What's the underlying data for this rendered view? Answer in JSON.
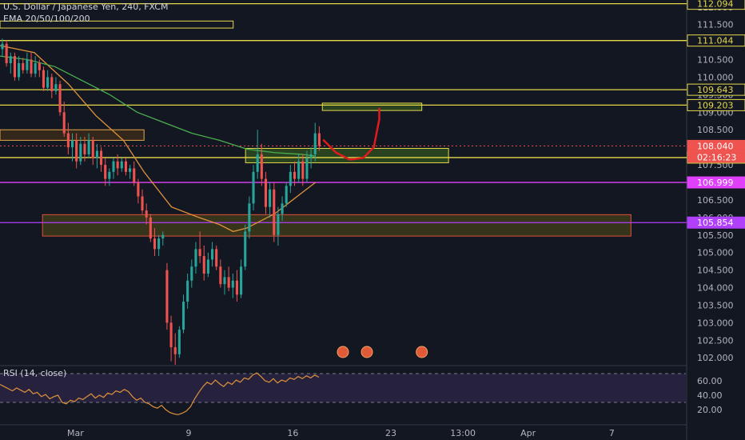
{
  "header": {
    "symbol": "U.S. Dollar / Japanese Yen, 240, FXCM",
    "indicator": "EMA 20/50/100/200"
  },
  "rsi_header": {
    "label": "RSI (14, close)"
  },
  "chart_data": [
    {
      "type": "candlestick",
      "title": "U.S. Dollar / Japanese Yen, 240, FXCM",
      "ylim": [
        101.8,
        112.2
      ],
      "x_ticks": [
        "Mar",
        "9",
        "16",
        "23",
        "13:00",
        "Apr",
        "7"
      ],
      "y_ticks": [
        "102.000",
        "102.500",
        "103.000",
        "103.500",
        "104.000",
        "104.500",
        "105.000",
        "105.500",
        "106.000",
        "106.500",
        "107.000",
        "107.500",
        "108.000",
        "108.500",
        "109.000",
        "109.500",
        "110.000",
        "110.500",
        "111.000",
        "111.500",
        "112.000"
      ],
      "price_levels": [
        {
          "value": 112.094,
          "label": "112.094",
          "color": "#e6d84b",
          "style": "solid"
        },
        {
          "value": 111.044,
          "label": "111.044",
          "color": "#e6d84b",
          "style": "solid"
        },
        {
          "value": 109.643,
          "label": "109.643",
          "color": "#e6d84b",
          "style": "solid"
        },
        {
          "value": 109.203,
          "label": "109.203",
          "color": "#e6d84b",
          "style": "solid"
        },
        {
          "value": 108.04,
          "label": "108.040",
          "color": "#ef5350",
          "style": "dotted"
        },
        {
          "value": 107.708,
          "label": "107.708",
          "color": "#e6d84b",
          "style": "solid"
        },
        {
          "value": 106.999,
          "label": "106.999",
          "color": "#e040fb",
          "style": "solid"
        },
        {
          "value": 105.854,
          "label": "105.854",
          "color": "#b040fb",
          "style": "solid"
        }
      ],
      "countdown": "02:16:23",
      "zones": [
        {
          "x0": 0,
          "x1": 0.34,
          "y0": 111.4,
          "y1": 111.6,
          "fill": "none",
          "stroke": "#e6d84b"
        },
        {
          "x0": 0,
          "x1": 0.21,
          "y0": 108.2,
          "y1": 108.5,
          "fill": "#3a2a1a",
          "stroke": "#e6a84b"
        },
        {
          "x0": 0.062,
          "x1": 0.92,
          "y0": 105.47,
          "y1": 106.08,
          "fill": "#3d3a1a",
          "stroke": "#e0503a"
        },
        {
          "x0": 0.358,
          "x1": 0.654,
          "y0": 107.56,
          "y1": 107.97,
          "fill": "#2e4a1e",
          "stroke": "#e6d84b"
        },
        {
          "x0": 0.47,
          "x1": 0.615,
          "y0": 109.05,
          "y1": 109.26,
          "fill": "#2e4a1e",
          "stroke": "#e6d84b"
        }
      ],
      "candles": [
        [
          0.0,
          110.8,
          111.1,
          110.6,
          110.95
        ],
        [
          0.006,
          110.95,
          111.05,
          110.3,
          110.4
        ],
        [
          0.012,
          110.4,
          110.7,
          110.1,
          110.6
        ],
        [
          0.018,
          110.6,
          110.7,
          109.9,
          110.0
        ],
        [
          0.024,
          110.0,
          110.6,
          109.9,
          110.4
        ],
        [
          0.03,
          110.4,
          110.55,
          110.1,
          110.2
        ],
        [
          0.036,
          110.2,
          110.7,
          110.1,
          110.5
        ],
        [
          0.042,
          110.5,
          110.7,
          110.0,
          110.1
        ],
        [
          0.048,
          110.1,
          110.6,
          110.0,
          110.4
        ],
        [
          0.054,
          110.4,
          110.5,
          110.0,
          110.2
        ],
        [
          0.06,
          110.2,
          110.3,
          109.6,
          109.7
        ],
        [
          0.066,
          109.7,
          110.2,
          109.6,
          110.0
        ],
        [
          0.072,
          110.0,
          110.1,
          109.4,
          109.6
        ],
        [
          0.078,
          109.6,
          110.0,
          109.5,
          109.8
        ],
        [
          0.084,
          109.8,
          109.9,
          108.9,
          109.0
        ],
        [
          0.09,
          109.0,
          109.3,
          108.3,
          108.4
        ],
        [
          0.096,
          108.4,
          108.7,
          107.8,
          108.0
        ],
        [
          0.102,
          108.0,
          108.4,
          107.6,
          108.2
        ],
        [
          0.108,
          108.2,
          108.4,
          107.4,
          107.6
        ],
        [
          0.114,
          107.6,
          108.3,
          107.5,
          108.1
        ],
        [
          0.12,
          108.1,
          108.3,
          107.6,
          107.8
        ],
        [
          0.126,
          107.8,
          108.4,
          107.7,
          108.2
        ],
        [
          0.132,
          108.2,
          108.3,
          107.5,
          107.7
        ],
        [
          0.138,
          107.7,
          108.1,
          107.4,
          107.9
        ],
        [
          0.144,
          107.9,
          108.0,
          107.3,
          107.5
        ],
        [
          0.15,
          107.5,
          107.7,
          106.9,
          107.1
        ],
        [
          0.156,
          107.1,
          107.4,
          106.9,
          107.3
        ],
        [
          0.162,
          107.3,
          107.7,
          107.1,
          107.6
        ],
        [
          0.168,
          107.6,
          107.8,
          107.2,
          107.4
        ],
        [
          0.174,
          107.4,
          107.7,
          107.3,
          107.6
        ],
        [
          0.18,
          107.6,
          107.7,
          107.2,
          107.3
        ],
        [
          0.186,
          107.3,
          107.5,
          107.1,
          107.4
        ],
        [
          0.192,
          107.4,
          107.6,
          106.9,
          107.0
        ],
        [
          0.198,
          107.0,
          107.1,
          106.4,
          106.6
        ],
        [
          0.204,
          106.6,
          106.8,
          106.1,
          106.2
        ],
        [
          0.21,
          106.2,
          106.4,
          105.8,
          106.0
        ],
        [
          0.216,
          106.0,
          106.1,
          105.3,
          105.4
        ],
        [
          0.222,
          105.4,
          105.7,
          104.9,
          105.1
        ],
        [
          0.228,
          105.1,
          105.5,
          104.9,
          105.4
        ],
        [
          0.234,
          105.4,
          105.6,
          105.2,
          105.5
        ],
        [
          0.24,
          104.5,
          104.7,
          102.8,
          103.0
        ],
        [
          0.246,
          103.0,
          103.2,
          101.9,
          102.3
        ],
        [
          0.252,
          102.3,
          102.7,
          101.8,
          102.1
        ],
        [
          0.258,
          102.1,
          102.9,
          102.0,
          102.8
        ],
        [
          0.264,
          102.8,
          103.8,
          102.7,
          103.6
        ],
        [
          0.27,
          103.6,
          104.4,
          103.4,
          104.2
        ],
        [
          0.276,
          104.2,
          104.8,
          104.0,
          104.6
        ],
        [
          0.282,
          104.6,
          105.3,
          104.4,
          105.1
        ],
        [
          0.288,
          105.1,
          105.6,
          104.7,
          104.9
        ],
        [
          0.294,
          104.9,
          105.2,
          104.2,
          104.4
        ],
        [
          0.3,
          104.4,
          105.0,
          104.3,
          104.8
        ],
        [
          0.306,
          104.8,
          105.3,
          104.6,
          105.1
        ],
        [
          0.312,
          105.1,
          105.2,
          104.5,
          104.6
        ],
        [
          0.318,
          104.6,
          104.8,
          104.0,
          104.1
        ],
        [
          0.324,
          104.1,
          104.5,
          103.8,
          104.3
        ],
        [
          0.33,
          104.3,
          104.6,
          103.9,
          104.0
        ],
        [
          0.336,
          104.0,
          104.4,
          103.7,
          104.2
        ],
        [
          0.342,
          104.2,
          104.5,
          103.6,
          103.8
        ],
        [
          0.348,
          103.8,
          104.8,
          103.7,
          104.6
        ],
        [
          0.354,
          104.6,
          105.8,
          104.5,
          105.6
        ],
        [
          0.36,
          105.6,
          106.6,
          105.4,
          106.4
        ],
        [
          0.366,
          106.4,
          107.5,
          106.2,
          107.3
        ],
        [
          0.372,
          107.3,
          108.5,
          107.1,
          107.8
        ],
        [
          0.378,
          107.8,
          108.1,
          106.9,
          107.1
        ],
        [
          0.384,
          107.1,
          107.3,
          106.1,
          106.3
        ],
        [
          0.39,
          106.3,
          107.0,
          106.0,
          106.8
        ],
        [
          0.396,
          106.8,
          107.0,
          105.3,
          105.5
        ],
        [
          0.402,
          105.5,
          106.3,
          105.2,
          106.1
        ],
        [
          0.408,
          106.1,
          106.6,
          105.9,
          106.4
        ],
        [
          0.414,
          106.4,
          107.0,
          106.3,
          106.9
        ],
        [
          0.42,
          106.9,
          107.5,
          106.7,
          107.3
        ],
        [
          0.426,
          107.3,
          107.6,
          106.9,
          107.1
        ],
        [
          0.432,
          107.1,
          107.8,
          107.0,
          107.6
        ],
        [
          0.438,
          107.6,
          107.8,
          106.9,
          107.1
        ],
        [
          0.444,
          107.1,
          107.9,
          107.0,
          107.7
        ],
        [
          0.45,
          107.7,
          108.0,
          107.4,
          107.8
        ],
        [
          0.456,
          107.8,
          108.7,
          107.6,
          108.4
        ],
        [
          0.462,
          108.4,
          108.6,
          107.9,
          108.04
        ]
      ],
      "emas": [
        {
          "name": "EMA 20",
          "color": "#e0913a",
          "points": [
            [
              0.0,
              110.9
            ],
            [
              0.05,
              110.7
            ],
            [
              0.1,
              109.8
            ],
            [
              0.14,
              108.9
            ],
            [
              0.18,
              108.2
            ],
            [
              0.21,
              107.3
            ],
            [
              0.25,
              106.3
            ],
            [
              0.29,
              106.0
            ],
            [
              0.32,
              105.8
            ],
            [
              0.34,
              105.6
            ],
            [
              0.36,
              105.7
            ],
            [
              0.38,
              105.9
            ],
            [
              0.4,
              106.1
            ],
            [
              0.42,
              106.4
            ],
            [
              0.44,
              106.7
            ],
            [
              0.46,
              107.0
            ]
          ]
        },
        {
          "name": "EMA 100",
          "color": "#4caf50",
          "points": [
            [
              0.0,
              110.6
            ],
            [
              0.04,
              110.5
            ],
            [
              0.08,
              110.3
            ],
            [
              0.12,
              109.9
            ],
            [
              0.16,
              109.5
            ],
            [
              0.2,
              109.0
            ],
            [
              0.24,
              108.7
            ],
            [
              0.28,
              108.4
            ],
            [
              0.32,
              108.2
            ],
            [
              0.36,
              107.95
            ],
            [
              0.4,
              107.85
            ],
            [
              0.44,
              107.8
            ],
            [
              0.46,
              107.75
            ]
          ]
        }
      ],
      "projection": [
        [
          0.472,
          108.2
        ],
        [
          0.49,
          107.85
        ],
        [
          0.51,
          107.65
        ],
        [
          0.53,
          107.7
        ],
        [
          0.545,
          108.0
        ],
        [
          0.553,
          108.8
        ],
        [
          0.553,
          109.1
        ]
      ]
    },
    {
      "type": "line",
      "title": "RSI (14, close)",
      "ylim": [
        0,
        80
      ],
      "y_ticks": [
        "20.00",
        "40.00",
        "60.00"
      ],
      "bands": [
        30,
        70
      ],
      "values": [
        55,
        52,
        49,
        46,
        50,
        47,
        44,
        48,
        42,
        44,
        38,
        41,
        35,
        38,
        40,
        30,
        28,
        33,
        31,
        36,
        34,
        38,
        42,
        36,
        40,
        37,
        43,
        41,
        46,
        44,
        48,
        45,
        38,
        33,
        36,
        30,
        28,
        24,
        22,
        26,
        20,
        16,
        14,
        13,
        15,
        18,
        24,
        35,
        44,
        52,
        58,
        55,
        61,
        56,
        52,
        58,
        55,
        61,
        58,
        64,
        62,
        68,
        71,
        66,
        60,
        58,
        63,
        57,
        61,
        59,
        64,
        62,
        66,
        63,
        67,
        64,
        68,
        65
      ]
    }
  ]
}
